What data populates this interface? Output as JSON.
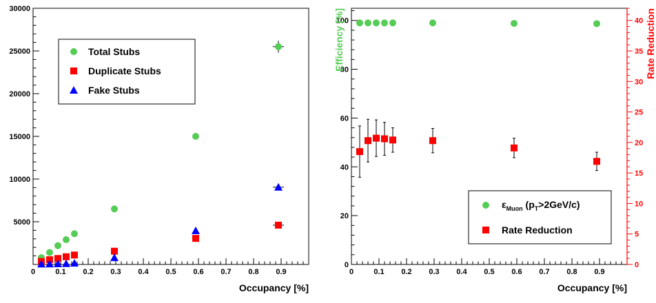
{
  "chart_data": [
    {
      "type": "scatter",
      "xlabel": "Occupancy [%]",
      "ylabel": "",
      "xlim": [
        0,
        1.0
      ],
      "ylim": [
        0,
        30000
      ],
      "x_ticks": [
        0,
        0.1,
        0.2,
        0.3,
        0.4,
        0.5,
        0.6,
        0.7,
        0.8,
        0.9
      ],
      "x_tick_labels": [
        "0",
        "0.1",
        "0.2",
        "0.3",
        "0.4",
        "0.5",
        "0.6",
        "0.7",
        "0.8",
        "0.9"
      ],
      "y_ticks": [
        5000,
        10000,
        15000,
        20000,
        25000,
        30000
      ],
      "y_tick_labels": [
        "5000",
        "10000",
        "15000",
        "20000",
        "25000",
        "30000"
      ],
      "grid": false,
      "legend_position": "top-left",
      "series": [
        {
          "name": "Total Stubs",
          "marker": "circle",
          "color": "#55cc55",
          "x": [
            0.03,
            0.06,
            0.09,
            0.12,
            0.15,
            0.295,
            0.59,
            0.89
          ],
          "y": [
            800,
            1400,
            2200,
            2900,
            3600,
            6500,
            15000,
            25500
          ]
        },
        {
          "name": "Duplicate Stubs",
          "marker": "square",
          "color": "#ff0000",
          "x": [
            0.03,
            0.06,
            0.09,
            0.12,
            0.15,
            0.295,
            0.59,
            0.89
          ],
          "y": [
            350,
            550,
            700,
            900,
            1100,
            1550,
            3050,
            4600
          ]
        },
        {
          "name": "Fake Stubs",
          "marker": "triangle",
          "color": "#0000ff",
          "x": [
            0.03,
            0.06,
            0.09,
            0.12,
            0.15,
            0.295,
            0.59,
            0.89
          ],
          "y": [
            50,
            60,
            80,
            100,
            150,
            800,
            3950,
            9050
          ]
        }
      ]
    },
    {
      "type": "scatter",
      "xlabel": "Occupancy [%]",
      "ylabel": "Efficiency [%]",
      "y2label": "Rate Reduction",
      "xlim": [
        0,
        1.0
      ],
      "ylim": [
        0,
        105
      ],
      "y2lim": [
        0,
        42
      ],
      "x_ticks": [
        0,
        0.1,
        0.2,
        0.3,
        0.4,
        0.5,
        0.6,
        0.7,
        0.8,
        0.9
      ],
      "x_tick_labels": [
        "0",
        "0.1",
        "0.2",
        "0.3",
        "0.4",
        "0.5",
        "0.6",
        "0.7",
        "0.8",
        "0.9"
      ],
      "y_ticks": [
        0,
        20,
        40,
        60,
        80,
        100
      ],
      "y_tick_labels": [
        "0",
        "20",
        "40",
        "60",
        "80",
        "100"
      ],
      "y2_ticks": [
        0,
        5,
        10,
        15,
        20,
        25,
        30,
        35,
        40
      ],
      "y2_tick_labels": [
        "0",
        "5",
        "10",
        "15",
        "20",
        "25",
        "30",
        "35",
        "40"
      ],
      "grid": false,
      "legend_position": "bottom-right",
      "series": [
        {
          "name": "ε",
          "name_sub": "Muon",
          "name_rest": " (p",
          "name_sub2": "T",
          "name_end": ">2GeV/c)",
          "marker": "circle",
          "color": "#55cc55",
          "axis": "left",
          "x": [
            0.03,
            0.06,
            0.09,
            0.12,
            0.15,
            0.295,
            0.59,
            0.89
          ],
          "y": [
            99,
            99,
            99,
            99,
            99,
            99,
            98.8,
            98.7
          ]
        },
        {
          "name": "Rate Reduction",
          "marker": "square",
          "color": "#ff0000",
          "axis": "right",
          "x": [
            0.03,
            0.06,
            0.09,
            0.12,
            0.15,
            0.295,
            0.59,
            0.89
          ],
          "y": [
            18.5,
            20.3,
            20.7,
            20.6,
            20.4,
            20.3,
            19.1,
            16.9
          ],
          "err": [
            4.2,
            3.5,
            3.0,
            2.7,
            2.0,
            2.0,
            1.6,
            1.5
          ]
        }
      ]
    }
  ]
}
